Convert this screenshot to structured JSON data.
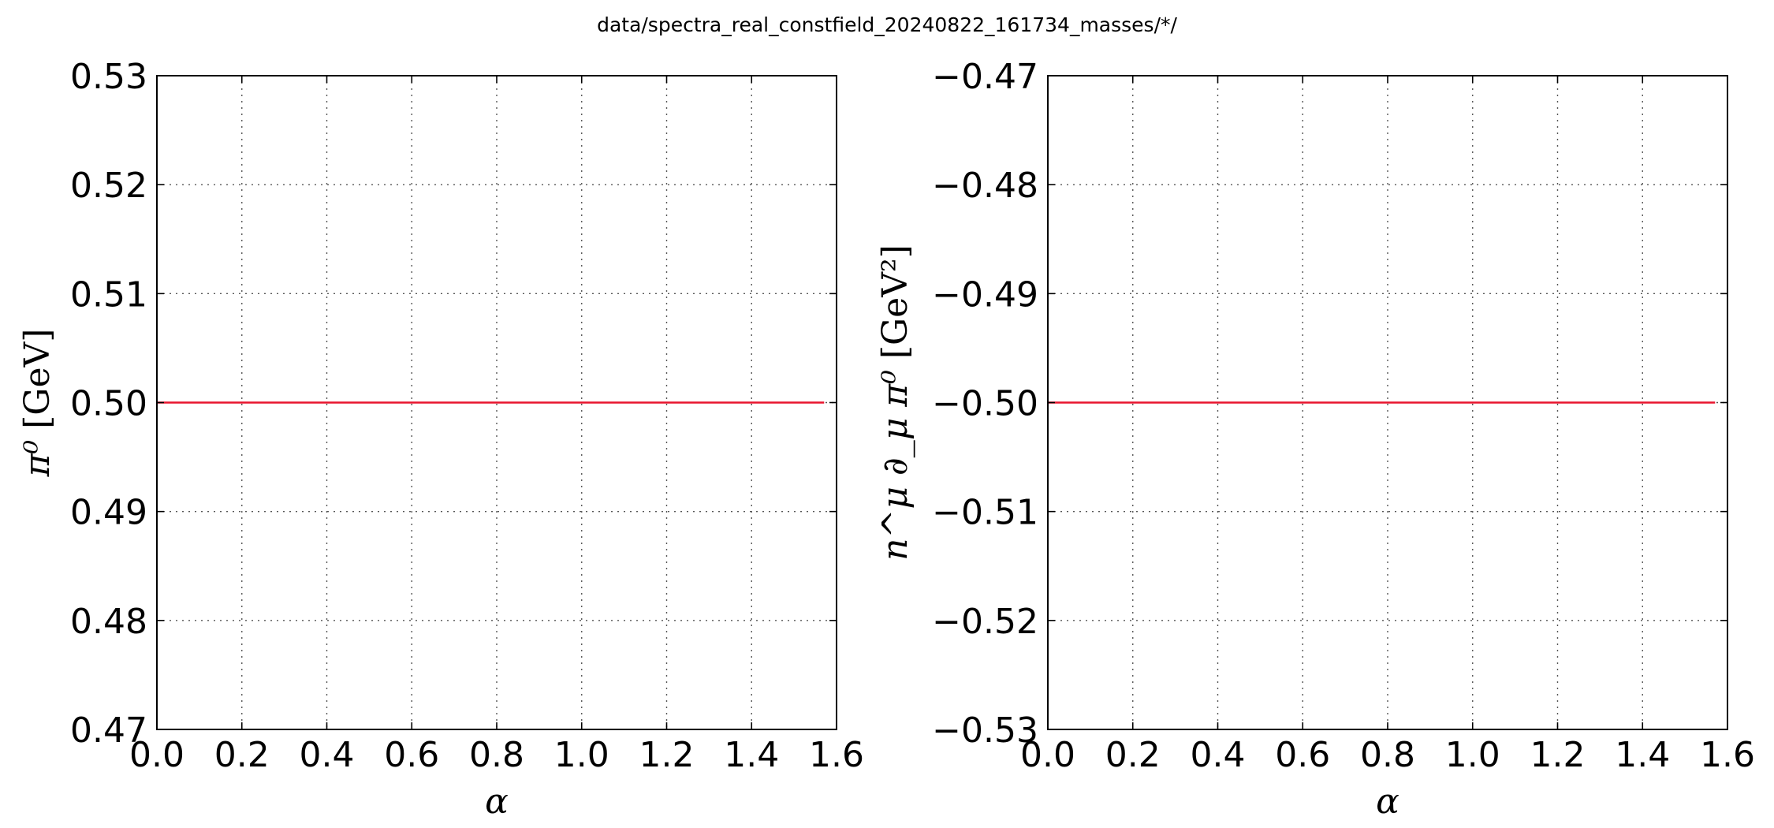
{
  "figure": {
    "suptitle": "data/spectra_real_constfield_20240822_161734_masses/*/"
  },
  "chart_data": [
    {
      "type": "line",
      "xlabel": {
        "symbol": "α",
        "unit": ""
      },
      "ylabel": {
        "symbol": "π⁰",
        "unit": "[GeV]"
      },
      "xlim": [
        0.0,
        1.6
      ],
      "ylim": [
        0.47,
        0.53
      ],
      "xticks": [
        0.0,
        0.2,
        0.4,
        0.6,
        0.8,
        1.0,
        1.2,
        1.4,
        1.6
      ],
      "xtick_labels": [
        "0.0",
        "0.2",
        "0.4",
        "0.6",
        "0.8",
        "1.0",
        "1.2",
        "1.4",
        "1.6"
      ],
      "yticks": [
        0.47,
        0.48,
        0.49,
        0.5,
        0.51,
        0.52,
        0.53
      ],
      "ytick_labels": [
        "0.47",
        "0.48",
        "0.49",
        "0.50",
        "0.51",
        "0.52",
        "0.53"
      ],
      "grid": true,
      "series": [
        {
          "color": "#e8152e",
          "x": [
            0.0,
            1.5708
          ],
          "y": [
            0.5,
            0.5
          ]
        }
      ]
    },
    {
      "type": "line",
      "xlabel": {
        "symbol": "α",
        "unit": ""
      },
      "ylabel": {
        "symbol": "n^μ ∂_μ π⁰",
        "unit": "[GeV²]"
      },
      "xlim": [
        0.0,
        1.6
      ],
      "ylim": [
        -0.53,
        -0.47
      ],
      "xticks": [
        0.0,
        0.2,
        0.4,
        0.6,
        0.8,
        1.0,
        1.2,
        1.4,
        1.6
      ],
      "xtick_labels": [
        "0.0",
        "0.2",
        "0.4",
        "0.6",
        "0.8",
        "1.0",
        "1.2",
        "1.4",
        "1.6"
      ],
      "yticks": [
        -0.53,
        -0.52,
        -0.51,
        -0.5,
        -0.49,
        -0.48,
        -0.47
      ],
      "ytick_labels": [
        "−0.53",
        "−0.52",
        "−0.51",
        "−0.50",
        "−0.49",
        "−0.48",
        "−0.47"
      ],
      "grid": true,
      "series": [
        {
          "color": "#e8152e",
          "x": [
            0.0,
            1.5708
          ],
          "y": [
            -0.5,
            -0.5
          ]
        }
      ]
    }
  ]
}
